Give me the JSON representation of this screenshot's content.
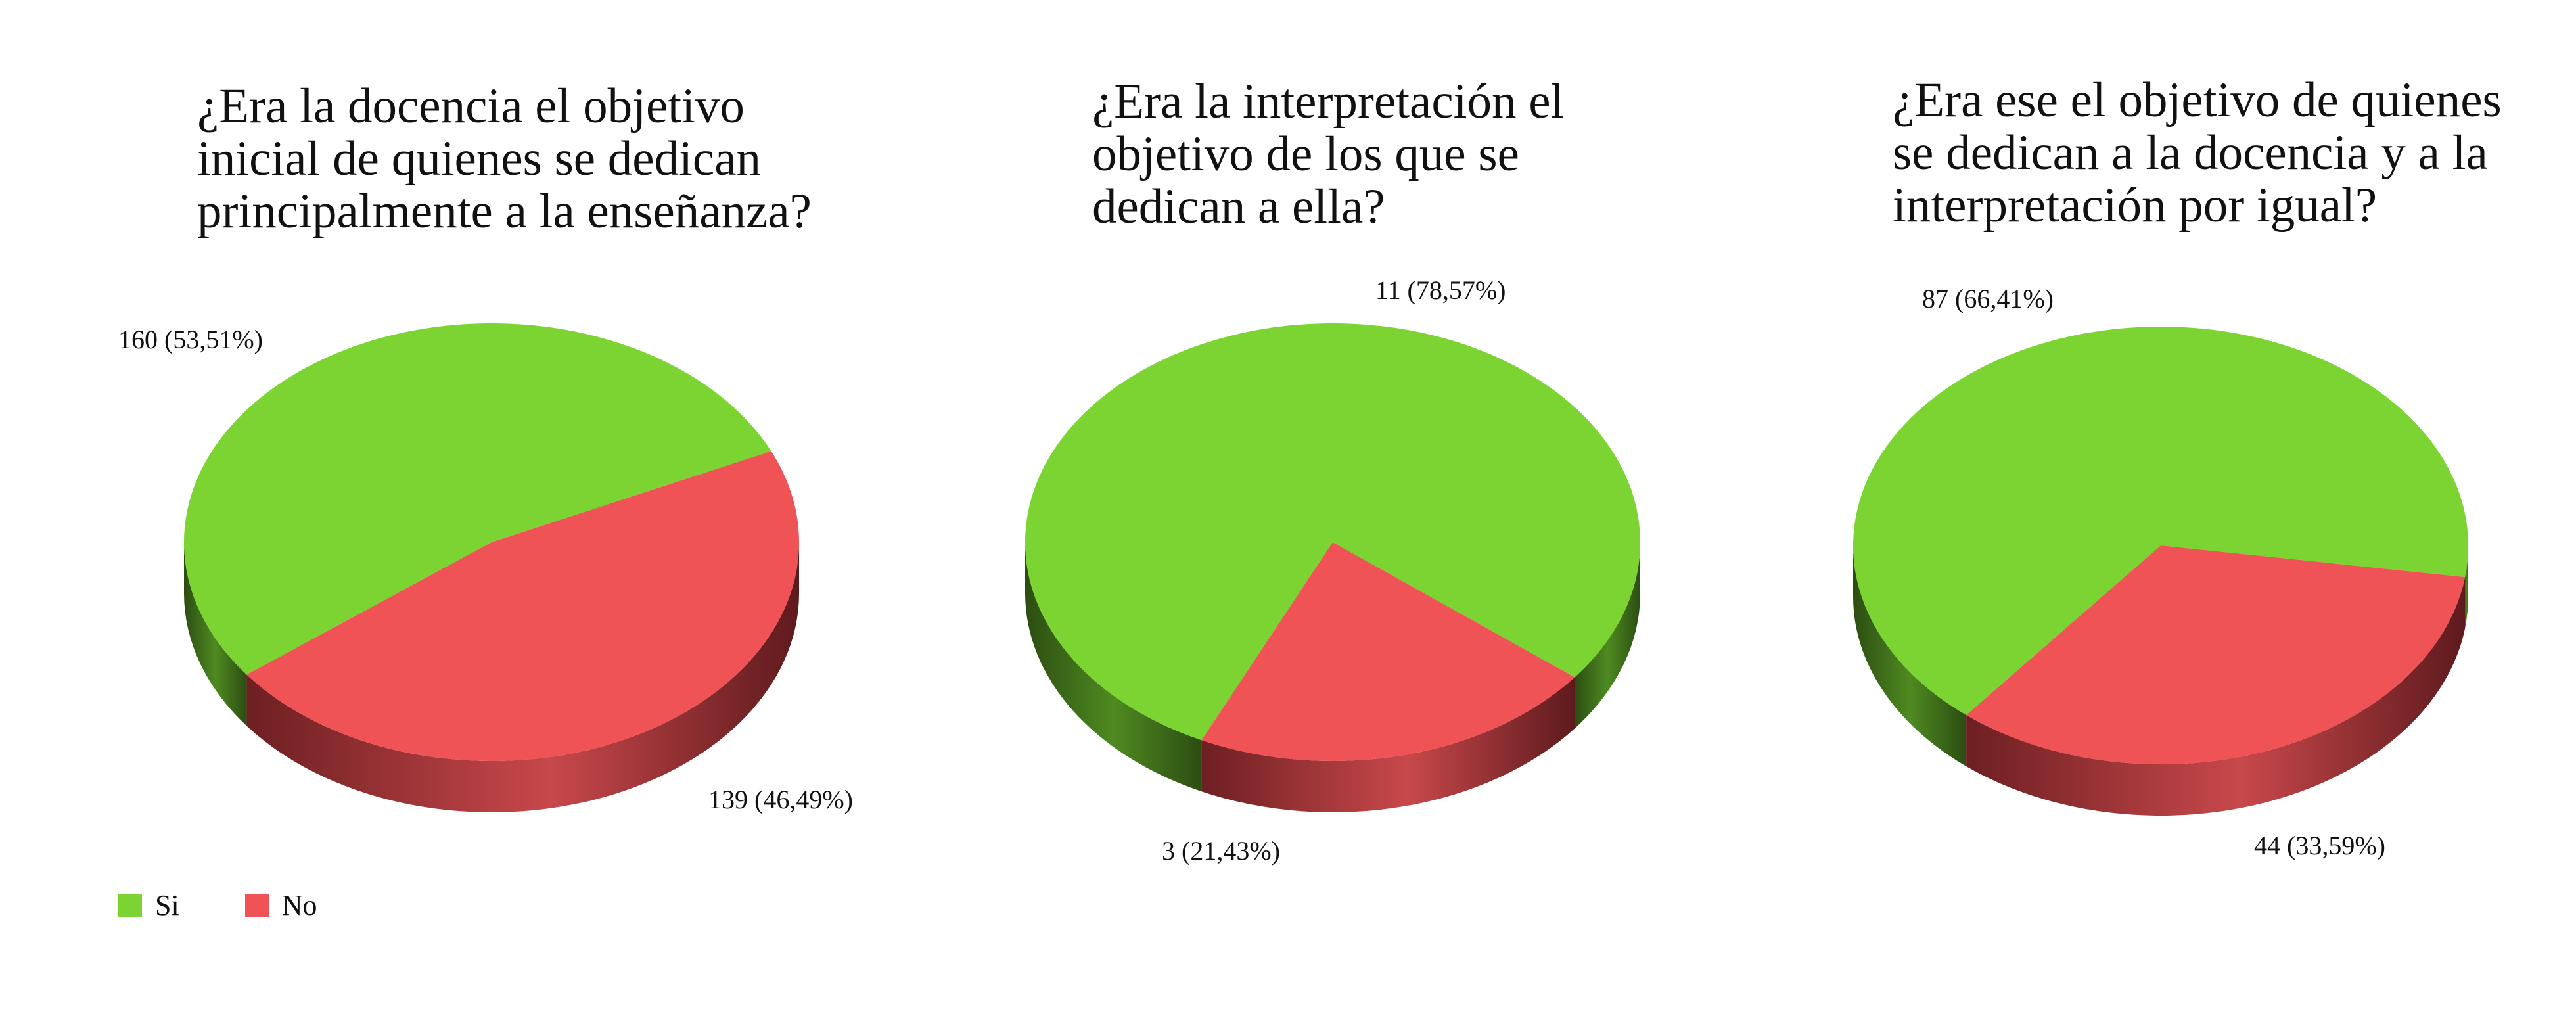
{
  "colors": {
    "si": "#7bd431",
    "si_dark": "#3e6a1a",
    "no": "#ef5355",
    "no_dark": "#7a2326"
  },
  "legend": [
    {
      "label": "Si",
      "color": "#7bd431"
    },
    {
      "label": "No",
      "color": "#ef5355"
    }
  ],
  "chart_data": [
    {
      "type": "pie",
      "title": "¿Era la docencia el objetivo inicial de quienes se dedican principalmente a la enseñanza?",
      "categories": [
        "Si",
        "No"
      ],
      "values": [
        160,
        139
      ],
      "data_labels": [
        "160 (53,51%)",
        "139 (46,49%)"
      ],
      "style": "3d"
    },
    {
      "type": "pie",
      "title": "¿Era la interpretación el objetivo de los que se dedican a ella?",
      "categories": [
        "Si",
        "No"
      ],
      "values": [
        11,
        3
      ],
      "data_labels": [
        "11 (78,57%)",
        "3 (21,43%)"
      ],
      "style": "3d"
    },
    {
      "type": "pie",
      "title": "¿Era ese el objetivo de quienes se dedican a la docencia y a la interpretación por igual?",
      "categories": [
        "Si",
        "No"
      ],
      "values": [
        87,
        44
      ],
      "data_labels": [
        "87 (66,41%)",
        "44 (33,59%)"
      ],
      "style": "3d"
    }
  ]
}
